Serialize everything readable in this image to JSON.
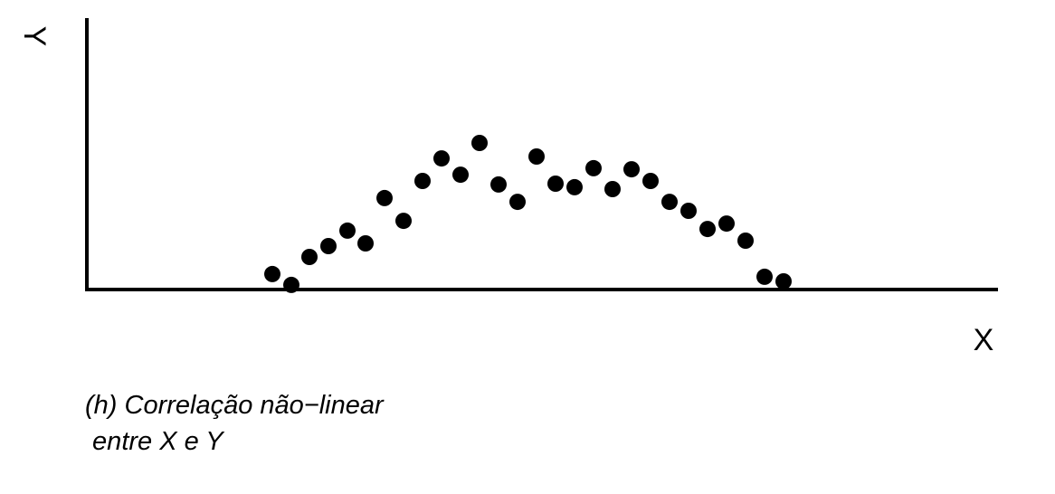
{
  "chart_data": {
    "type": "scatter",
    "title": "",
    "xlabel": "X",
    "ylabel": "Y",
    "xlim": [
      0,
      100
    ],
    "ylim": [
      0,
      100
    ],
    "grid": false,
    "ticks_shown": false,
    "marker_color": "#000000",
    "caption_lines": [
      "(h) Correlação não−linear",
      " entre X e Y"
    ],
    "points": [
      {
        "x": 20.5,
        "y": 5.7
      },
      {
        "x": 22.6,
        "y": 1.7
      },
      {
        "x": 24.6,
        "y": 12.0
      },
      {
        "x": 26.7,
        "y": 16.0
      },
      {
        "x": 28.8,
        "y": 21.7
      },
      {
        "x": 30.8,
        "y": 17.0
      },
      {
        "x": 32.9,
        "y": 33.7
      },
      {
        "x": 35.0,
        "y": 25.3
      },
      {
        "x": 37.1,
        "y": 40.0
      },
      {
        "x": 39.2,
        "y": 48.3
      },
      {
        "x": 41.3,
        "y": 42.3
      },
      {
        "x": 43.4,
        "y": 54.0
      },
      {
        "x": 45.5,
        "y": 38.7
      },
      {
        "x": 47.6,
        "y": 32.3
      },
      {
        "x": 49.7,
        "y": 49.0
      },
      {
        "x": 51.8,
        "y": 39.0
      },
      {
        "x": 53.9,
        "y": 37.7
      },
      {
        "x": 56.0,
        "y": 44.7
      },
      {
        "x": 58.1,
        "y": 37.0
      },
      {
        "x": 60.2,
        "y": 44.3
      },
      {
        "x": 62.3,
        "y": 40.0
      },
      {
        "x": 64.4,
        "y": 32.3
      },
      {
        "x": 66.5,
        "y": 29.0
      },
      {
        "x": 68.6,
        "y": 22.3
      },
      {
        "x": 70.7,
        "y": 24.3
      },
      {
        "x": 72.8,
        "y": 18.0
      },
      {
        "x": 74.9,
        "y": 4.7
      },
      {
        "x": 77.0,
        "y": 3.0
      }
    ]
  }
}
